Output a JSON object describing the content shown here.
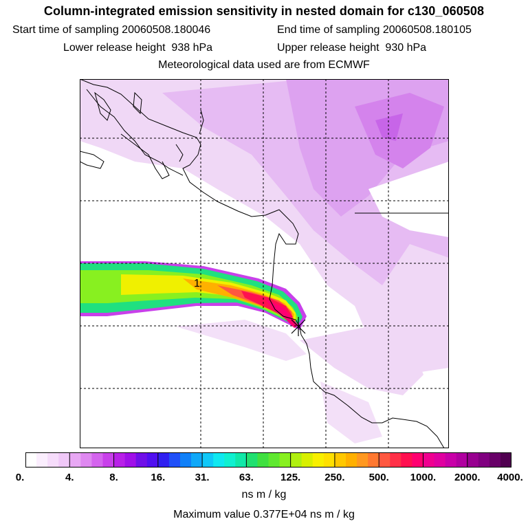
{
  "header": {
    "title": "Column-integrated emission sensitivity in nested domain for c130_060508",
    "start_time": "Start time of sampling 20060508.180046",
    "end_time": "End time of sampling 20060508.180105",
    "lower_release": "Lower release height  938 hPa",
    "upper_release": "Upper release height  930 hPa",
    "met_data": "Meteorological data used are from ECMWF"
  },
  "map": {
    "label_1": "1",
    "colors": {
      "land_light": "#f0d8f6",
      "land_mid": "#e2aef0",
      "land_strong": "#d483ec",
      "plume_green": "#20e080",
      "plume_yellow": "#f0f000",
      "plume_orange": "#ff9020",
      "plume_red": "#ff2050",
      "plume_magenta": "#ff1090"
    }
  },
  "colorbar": {
    "ticks": [
      "0.",
      "4.",
      "8.",
      "16.",
      "31.",
      "63.",
      "125.",
      "250.",
      "500.",
      "1000.",
      "2000.",
      "4000."
    ],
    "colors": [
      "#ffffff",
      "#fbeefe",
      "#f6dcfb",
      "#f0c8f8",
      "#e8a8f4",
      "#df88f1",
      "#d464ee",
      "#c840ea",
      "#b820e8",
      "#a010e8",
      "#7010e8",
      "#5010f0",
      "#3020f0",
      "#2050f8",
      "#1080f8",
      "#10a8f8",
      "#10c8f8",
      "#10e8f0",
      "#10f0d0",
      "#10e8a8",
      "#20e070",
      "#40e040",
      "#60e830",
      "#88f020",
      "#b0f010",
      "#d8f000",
      "#f8f000",
      "#ffe000",
      "#ffc800",
      "#ffb000",
      "#ff9820",
      "#ff7830",
      "#ff5840",
      "#ff3048",
      "#ff1050",
      "#ff0070",
      "#f00090",
      "#e000a0",
      "#c800a8",
      "#b000a0",
      "#980090",
      "#800080",
      "#680068",
      "#500050"
    ],
    "units": "ns m / kg",
    "max_value": "Maximum value  0.377E+04 ns m / kg"
  }
}
